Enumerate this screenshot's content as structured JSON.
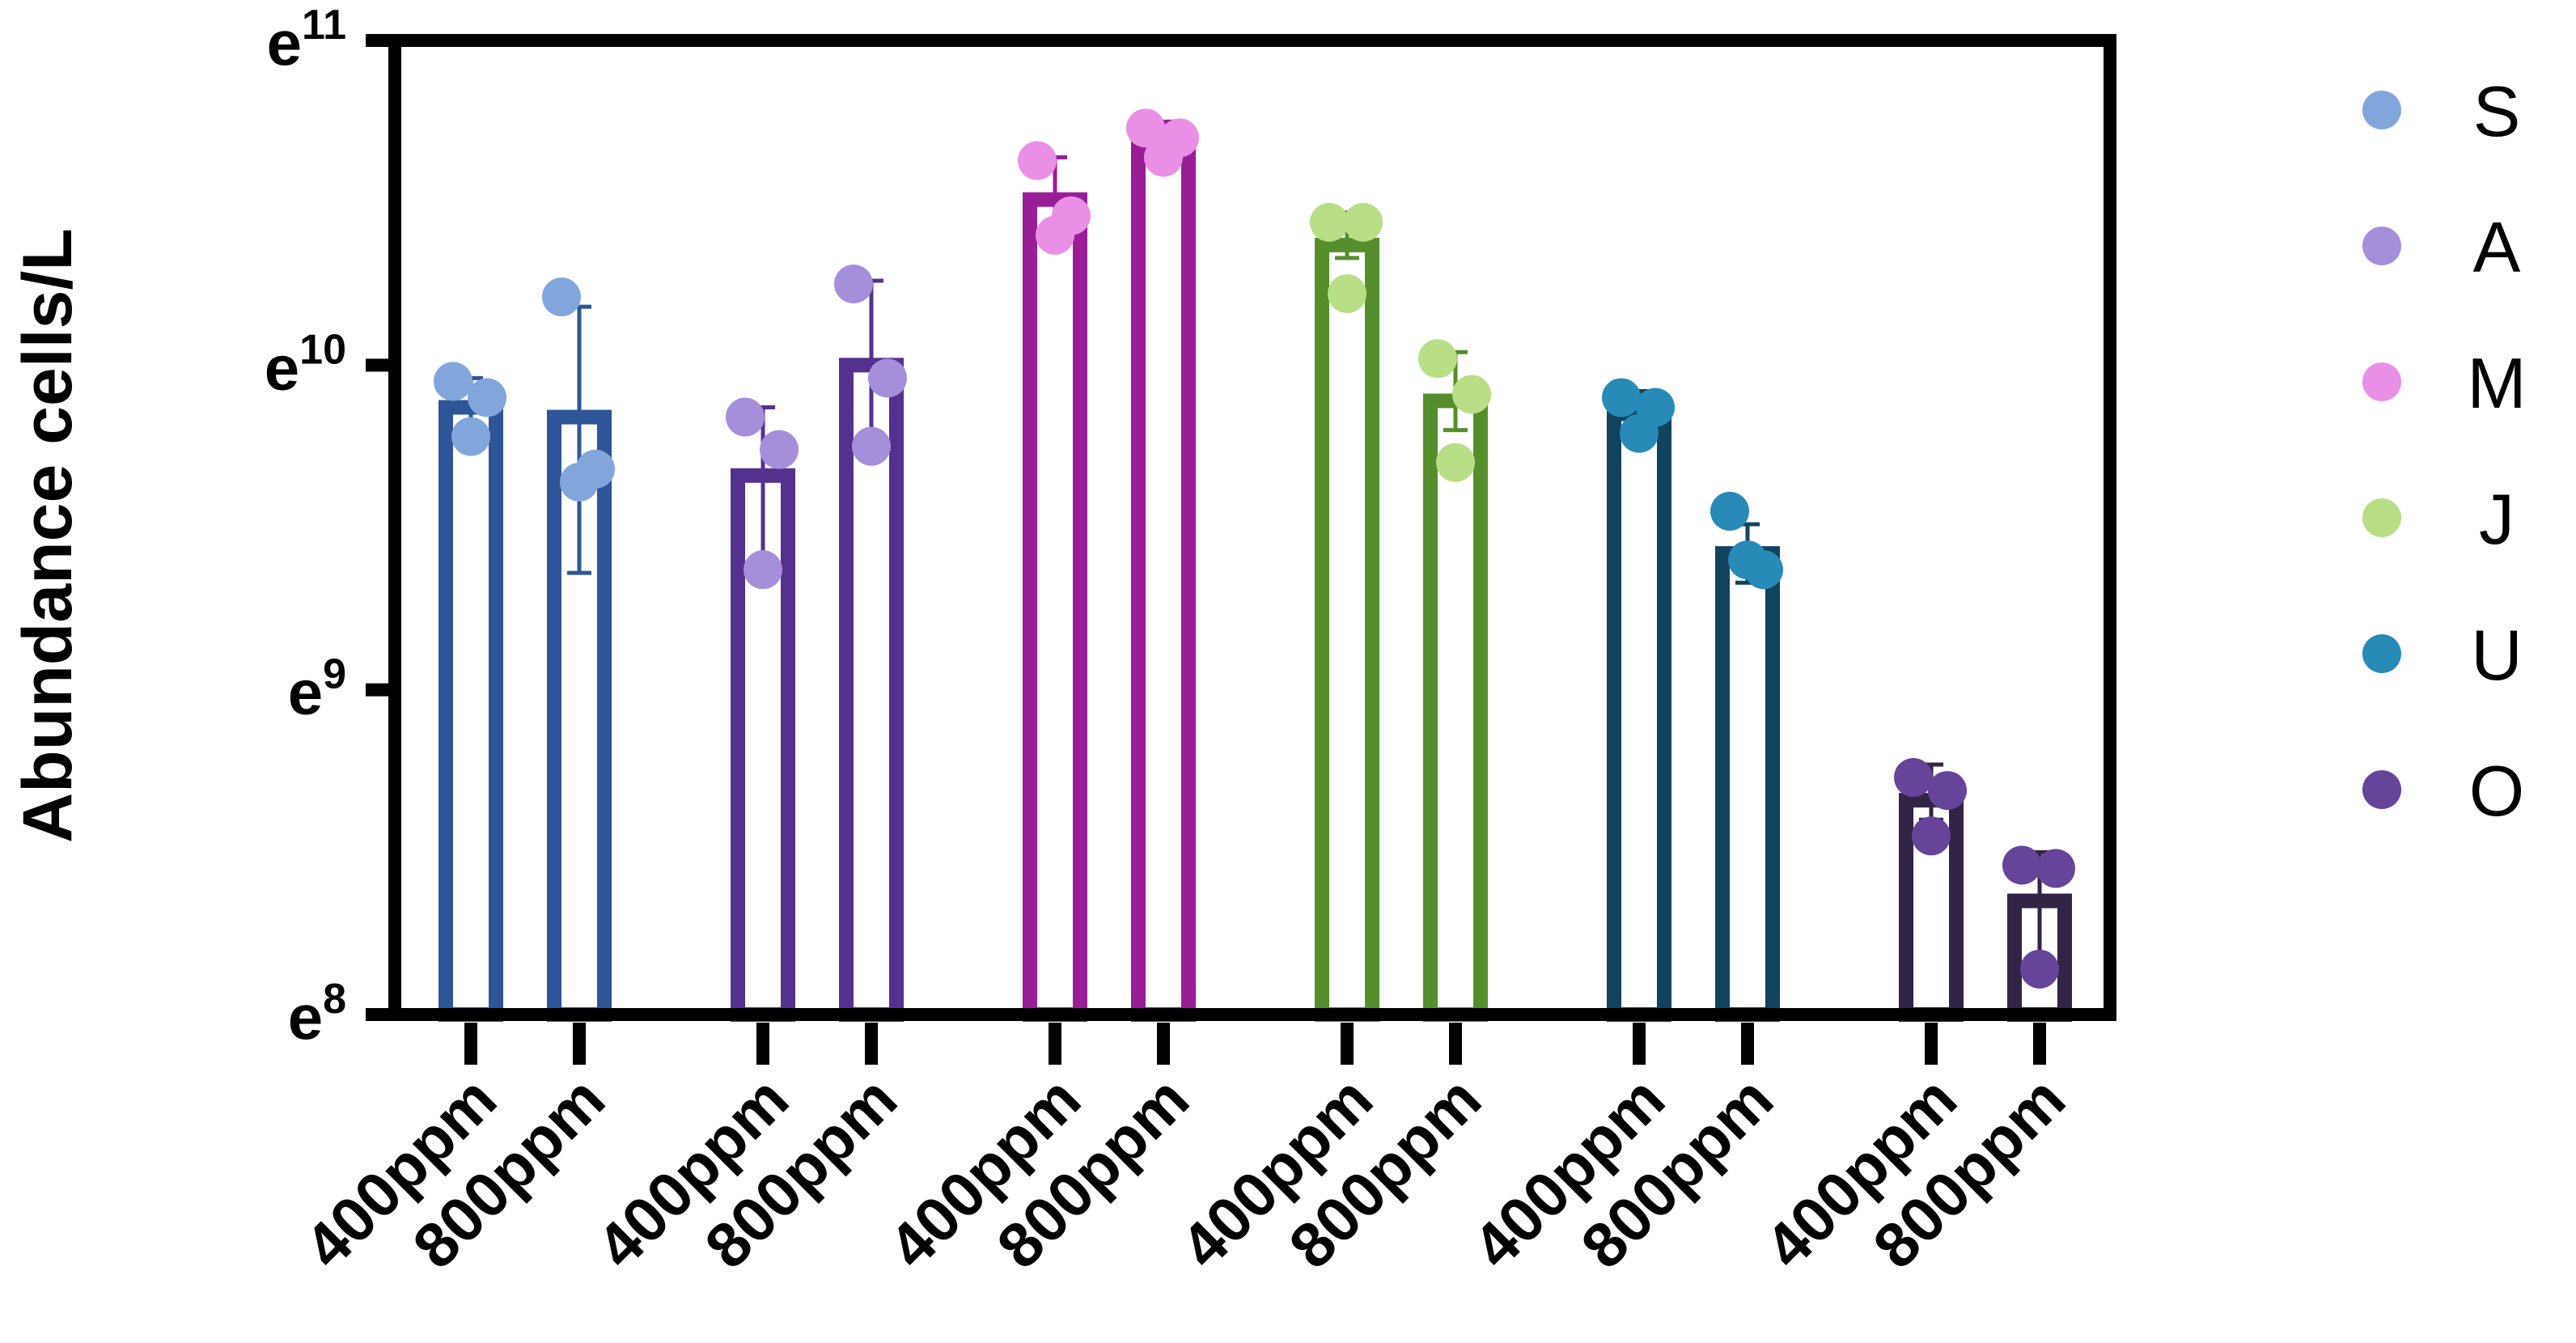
{
  "chart_data": {
    "type": "bar",
    "ylabel": "Abundance cells/L",
    "yscale": "log",
    "ylim": [
      8,
      11
    ],
    "yticks": [
      {
        "base": "e",
        "exp": "8",
        "value": 8
      },
      {
        "base": "e",
        "exp": "9",
        "value": 9
      },
      {
        "base": "e",
        "exp": "10",
        "value": 10
      },
      {
        "base": "e",
        "exp": "11",
        "value": 11
      }
    ],
    "categories": [
      "400ppm",
      "800ppm",
      "400ppm",
      "800ppm",
      "400ppm",
      "800ppm",
      "400ppm",
      "800ppm",
      "400ppm",
      "800ppm",
      "400ppm",
      "800ppm"
    ],
    "groups": [
      {
        "name": "S",
        "bar_color": "#2e5597",
        "point_color": "#82a6dc",
        "bars": [
          {
            "category": "400ppm",
            "mean": 9.87,
            "err_low": 9.82,
            "err_high": 9.96,
            "points": [
              9.95,
              9.9,
              9.78
            ]
          },
          {
            "category": "800ppm",
            "mean": 9.84,
            "err_low": 9.36,
            "err_high": 10.18,
            "points": [
              10.21,
              9.68,
              9.64
            ]
          }
        ]
      },
      {
        "name": "A",
        "bar_color": "#54318f",
        "point_color": "#a58fda",
        "bars": [
          {
            "category": "400ppm",
            "mean": 9.66,
            "err_low": 9.36,
            "err_high": 9.87,
            "points": [
              9.84,
              9.74,
              9.37
            ]
          },
          {
            "category": "800ppm",
            "mean": 10.0,
            "err_low": 9.71,
            "err_high": 10.26,
            "points": [
              10.25,
              9.96,
              9.75
            ]
          }
        ]
      },
      {
        "name": "M",
        "bar_color": "#9a1d98",
        "point_color": "#e98fe6",
        "bars": [
          {
            "category": "400ppm",
            "mean": 10.51,
            "err_low": 10.37,
            "err_high": 10.64,
            "points": [
              10.63,
              10.46,
              10.4
            ]
          },
          {
            "category": "800ppm",
            "mean": 10.68,
            "err_low": 10.62,
            "err_high": 10.75,
            "points": [
              10.73,
              10.7,
              10.64
            ]
          }
        ]
      },
      {
        "name": "J",
        "bar_color": "#558f2c",
        "point_color": "#b8de86",
        "bars": [
          {
            "category": "400ppm",
            "mean": 10.37,
            "err_low": 10.33,
            "err_high": 10.47,
            "points": [
              10.44,
              10.44,
              10.22
            ]
          },
          {
            "category": "800ppm",
            "mean": 9.89,
            "err_low": 9.8,
            "err_high": 10.04,
            "points": [
              10.02,
              9.91,
              9.7
            ]
          }
        ]
      },
      {
        "name": "U",
        "bar_color": "#11435f",
        "point_color": "#288ab6",
        "bars": [
          {
            "category": "400ppm",
            "mean": 9.85,
            "err_low": 9.78,
            "err_high": 9.92,
            "points": [
              9.9,
              9.87,
              9.79
            ]
          },
          {
            "category": "800ppm",
            "mean": 9.42,
            "err_low": 9.33,
            "err_high": 9.51,
            "points": [
              9.55,
              9.37,
              9.4
            ]
          }
        ]
      },
      {
        "name": "O",
        "bar_color": "#312447",
        "point_color": "#66449a",
        "bars": [
          {
            "category": "400ppm",
            "mean": 8.66,
            "err_low": 8.6,
            "err_high": 8.77,
            "points": [
              8.73,
              8.69,
              8.55
            ]
          },
          {
            "category": "800ppm",
            "mean": 8.35,
            "err_low": 8.13,
            "err_high": 8.5,
            "points": [
              8.46,
              8.45,
              8.14
            ]
          }
        ]
      }
    ],
    "legend": {
      "placement": "right",
      "entries": [
        "S",
        "A",
        "M",
        "J",
        "U",
        "O"
      ]
    },
    "grid": false
  }
}
